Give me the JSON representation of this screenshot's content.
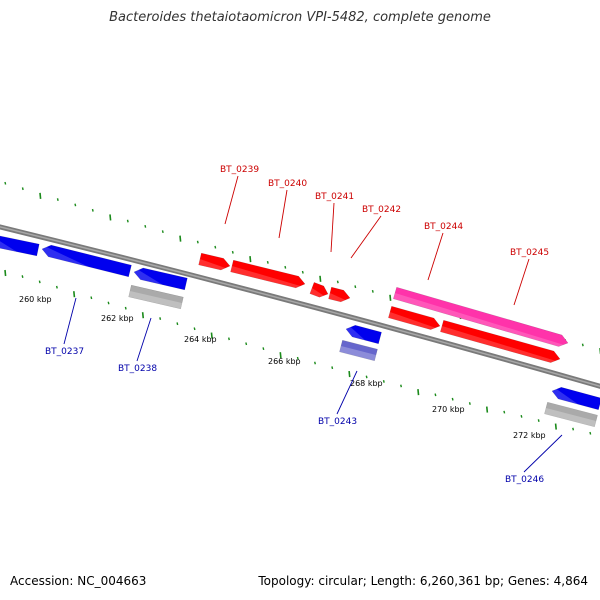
{
  "title": "Bacteroides thetaiotaomicron VPI-5482, complete genome",
  "footer": {
    "accession": "Accession: NC_004663",
    "stats": "Topology: circular; Length: 6,260,361 bp; Genes: 4,864"
  },
  "colors": {
    "backbone": "#7a7a7a",
    "forward_gene": "#ff0000",
    "reverse_gene": "#0000ee",
    "forward_label": "#cc0000",
    "reverse_label": "#0000aa",
    "tick": "#1a8a1a",
    "highlight_gene": "#ff33aa",
    "pseudo_gene": "#aaaaaa",
    "light_gene": "#6666cc"
  },
  "ticks": [
    {
      "label": "260 kbp",
      "kbp": 260
    },
    {
      "label": "262 kbp",
      "kbp": 262
    },
    {
      "label": "264 kbp",
      "kbp": 264
    },
    {
      "label": "266 kbp",
      "kbp": 266
    },
    {
      "label": "268 kbp",
      "kbp": 268
    },
    {
      "label": "270 kbp",
      "kbp": 270
    },
    {
      "label": "272 kbp",
      "kbp": 272
    }
  ],
  "genes": [
    {
      "name": "BT_0239",
      "strand": "forward",
      "type": "normal"
    },
    {
      "name": "BT_0240",
      "strand": "forward",
      "type": "normal"
    },
    {
      "name": "BT_0241",
      "strand": "forward",
      "type": "normal"
    },
    {
      "name": "BT_0242",
      "strand": "forward",
      "type": "normal"
    },
    {
      "name": "BT_0244",
      "strand": "forward",
      "type": "highlight"
    },
    {
      "name": "BT_0245",
      "strand": "forward",
      "type": "normal"
    },
    {
      "name": "BT_0237",
      "strand": "reverse",
      "type": "normal"
    },
    {
      "name": "BT_0238",
      "strand": "reverse",
      "type": "pseudo"
    },
    {
      "name": "BT_0243",
      "strand": "reverse",
      "type": "light"
    },
    {
      "name": "BT_0246",
      "strand": "reverse",
      "type": "pseudo"
    }
  ]
}
